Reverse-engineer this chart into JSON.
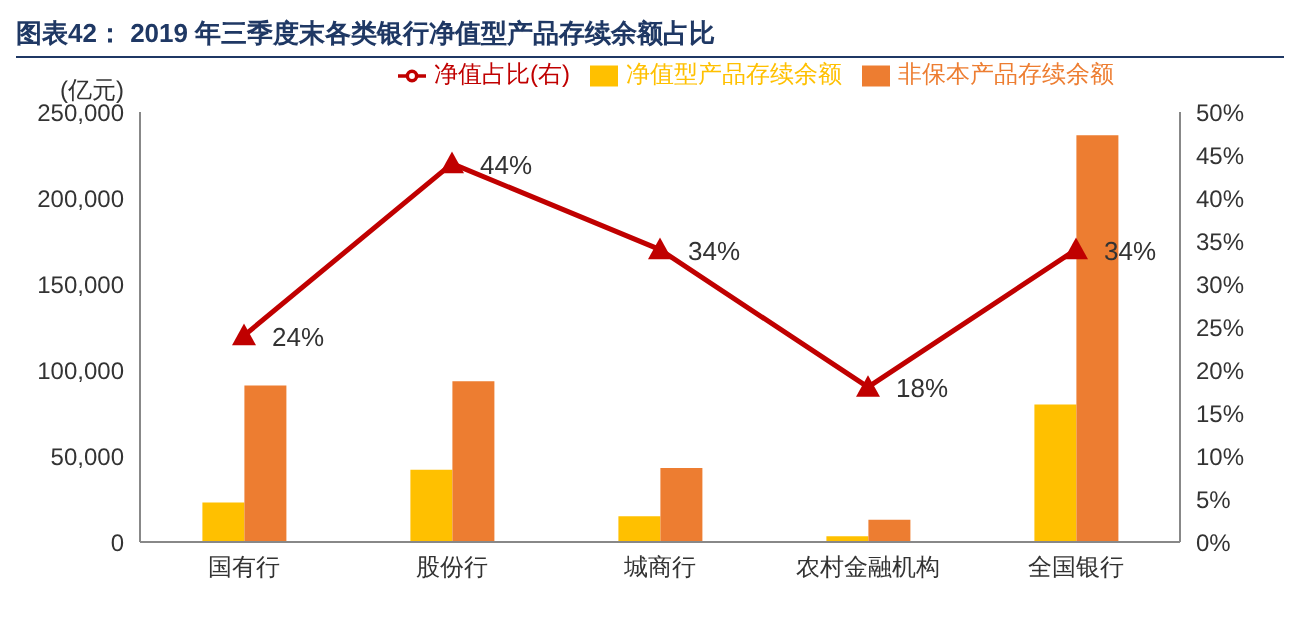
{
  "chart_data": {
    "type": "bar",
    "title": "图表42：  2019 年三季度末各类银行净值型产品存续余额占比",
    "ylabel": "(亿元)",
    "categories": [
      "国有行",
      "股份行",
      "城商行",
      "农村金融机构",
      "全国银行"
    ],
    "series": [
      {
        "name": "净值型产品存续余额",
        "color": "#ffc000",
        "values": [
          23000,
          42000,
          15000,
          3400,
          80000
        ]
      },
      {
        "name": "非保本产品存续余额",
        "color": "#ed7d31",
        "values": [
          91000,
          93500,
          43000,
          13000,
          236500
        ]
      },
      {
        "name": "净值占比(右)",
        "type": "line",
        "axis": "y2",
        "color": "#c00000",
        "values": [
          24,
          44,
          34,
          18,
          34
        ],
        "value_labels": [
          "24%",
          "44%",
          "34%",
          "18%",
          "34%"
        ]
      }
    ],
    "ylim": [
      0,
      250000
    ],
    "yticks": [
      {
        "value": 0,
        "label": "0"
      },
      {
        "value": 50000,
        "label": "50,000"
      },
      {
        "value": 100000,
        "label": "100,000"
      },
      {
        "value": 150000,
        "label": "150,000"
      },
      {
        "value": 200000,
        "label": "200,000"
      },
      {
        "value": 250000,
        "label": "250,000"
      }
    ],
    "y2lim": [
      0,
      50
    ],
    "y2ticks": [
      {
        "value": 0,
        "label": "0%"
      },
      {
        "value": 5,
        "label": "5%"
      },
      {
        "value": 10,
        "label": "10%"
      },
      {
        "value": 15,
        "label": "15%"
      },
      {
        "value": 20,
        "label": "20%"
      },
      {
        "value": 25,
        "label": "25%"
      },
      {
        "value": 30,
        "label": "30%"
      },
      {
        "value": 35,
        "label": "35%"
      },
      {
        "value": 40,
        "label": "40%"
      },
      {
        "value": 45,
        "label": "45%"
      },
      {
        "value": 50,
        "label": "50%"
      }
    ],
    "grid": false,
    "legend": "top",
    "marker": "triangle",
    "line_style": "solid"
  }
}
